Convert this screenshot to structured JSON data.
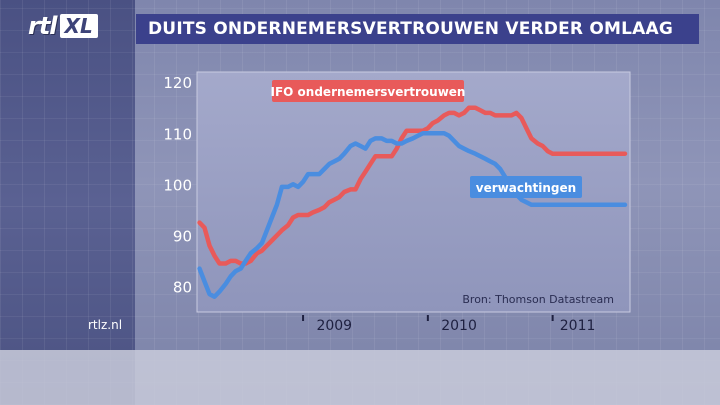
{
  "branding": {
    "logo_main": "rtl",
    "logo_badge": "XL",
    "site": "rtlz.nl"
  },
  "header": {
    "title": "DUITS ONDERNEMERSVERTROUWEN VERDER OMLAAG"
  },
  "colors": {
    "title_bar": "#3b418c",
    "ifo": "#e85a5a",
    "expectations": "#4a8de0",
    "plot_bg": "#9aa0c4"
  },
  "chart_data": {
    "type": "line",
    "title": "DUITS ONDERNEMERSVERTROUWEN VERDER OMLAAG",
    "xlabel": "",
    "ylabel": "",
    "ylim": [
      75,
      122
    ],
    "xlim": [
      2008.15,
      2011.62
    ],
    "y_ticks": [
      80,
      90,
      100,
      110,
      120
    ],
    "x_ticks": [
      "2009",
      "2010",
      "2011"
    ],
    "source": "Bron: Thomson Datastream",
    "grid": false,
    "series": [
      {
        "name": "IFO ondernemersvertrouwen",
        "color": "#e85a5a",
        "x": [
          2008.17,
          2008.21,
          2008.25,
          2008.29,
          2008.33,
          2008.38,
          2008.42,
          2008.46,
          2008.5,
          2008.54,
          2008.58,
          2008.63,
          2008.67,
          2008.71,
          2008.75,
          2008.79,
          2008.83,
          2008.88,
          2008.92,
          2008.96,
          2009.0,
          2009.04,
          2009.08,
          2009.13,
          2009.17,
          2009.21,
          2009.25,
          2009.29,
          2009.33,
          2009.38,
          2009.42,
          2009.46,
          2009.5,
          2009.54,
          2009.58,
          2009.63,
          2009.67,
          2009.71,
          2009.75,
          2009.79,
          2009.83,
          2009.88,
          2009.92,
          2009.96,
          2010.0,
          2010.04,
          2010.08,
          2010.13,
          2010.17,
          2010.21,
          2010.25,
          2010.29,
          2010.33,
          2010.38,
          2010.42,
          2010.46,
          2010.5,
          2010.54,
          2010.58,
          2010.63,
          2010.67,
          2010.71,
          2010.75,
          2010.79,
          2010.83,
          2010.88,
          2010.92,
          2010.96,
          2011.0,
          2011.04,
          2011.08,
          2011.13,
          2011.17,
          2011.21,
          2011.25,
          2011.29,
          2011.33,
          2011.38,
          2011.42,
          2011.46,
          2011.5,
          2011.54,
          2011.58
        ],
        "values": [
          92.5,
          91.5,
          88,
          86,
          84.5,
          84.5,
          85,
          85,
          84.5,
          84.5,
          85,
          86.5,
          87,
          88,
          89,
          90,
          91,
          92,
          93.5,
          94,
          94,
          94,
          94.5,
          95,
          95.5,
          96.5,
          97,
          97.5,
          98.5,
          99,
          99,
          101,
          102.5,
          104,
          105.5,
          105.5,
          105.5,
          105.5,
          107,
          109,
          110.5,
          110.5,
          110.5,
          110.5,
          111,
          112,
          112.5,
          113.5,
          114,
          114,
          113.5,
          114,
          115,
          115,
          114.5,
          114,
          114,
          113.5,
          113.5,
          113.5,
          113.5,
          114,
          113,
          111,
          109,
          108,
          107.5,
          106.5,
          106,
          106,
          106,
          106,
          106,
          106,
          106,
          106,
          106,
          106,
          106,
          106,
          106,
          106,
          106
        ]
      },
      {
        "name": "verwachtingen",
        "color": "#4a8de0",
        "x": [
          2008.17,
          2008.21,
          2008.25,
          2008.29,
          2008.33,
          2008.38,
          2008.42,
          2008.46,
          2008.5,
          2008.54,
          2008.58,
          2008.63,
          2008.67,
          2008.71,
          2008.75,
          2008.79,
          2008.83,
          2008.88,
          2008.92,
          2008.96,
          2009.0,
          2009.04,
          2009.08,
          2009.13,
          2009.17,
          2009.21,
          2009.25,
          2009.29,
          2009.33,
          2009.38,
          2009.42,
          2009.46,
          2009.5,
          2009.54,
          2009.58,
          2009.63,
          2009.67,
          2009.71,
          2009.75,
          2009.79,
          2009.83,
          2009.88,
          2009.92,
          2009.96,
          2010.0,
          2010.04,
          2010.08,
          2010.13,
          2010.17,
          2010.21,
          2010.25,
          2010.29,
          2010.33,
          2010.38,
          2010.42,
          2010.46,
          2010.5,
          2010.54,
          2010.58,
          2010.63,
          2010.67,
          2010.71,
          2010.75,
          2010.79,
          2010.83,
          2010.88,
          2010.92,
          2010.96,
          2011.0,
          2011.04,
          2011.08,
          2011.13,
          2011.17,
          2011.21,
          2011.25,
          2011.29,
          2011.33,
          2011.38,
          2011.42,
          2011.46,
          2011.5,
          2011.54,
          2011.58
        ],
        "values": [
          83.5,
          81,
          78.5,
          78,
          79,
          80.5,
          82,
          83,
          83.5,
          85,
          86.5,
          87.5,
          88.5,
          91,
          93.5,
          96,
          99.5,
          99.5,
          100,
          99.5,
          100.5,
          102,
          102,
          102,
          103,
          104,
          104.5,
          105,
          106,
          107.5,
          108,
          107.5,
          107,
          108.5,
          109,
          109,
          108.5,
          108.5,
          108,
          108,
          108.5,
          109,
          109.5,
          110,
          110,
          110,
          110,
          110,
          109.5,
          108.5,
          107.5,
          107,
          106.5,
          106,
          105.5,
          105,
          104.5,
          104,
          103,
          101,
          99.5,
          98,
          97,
          96.5,
          96,
          96,
          96,
          96,
          96,
          96,
          96,
          96,
          96,
          96,
          96,
          96,
          96,
          96,
          96,
          96,
          96,
          96,
          96
        ]
      }
    ]
  }
}
